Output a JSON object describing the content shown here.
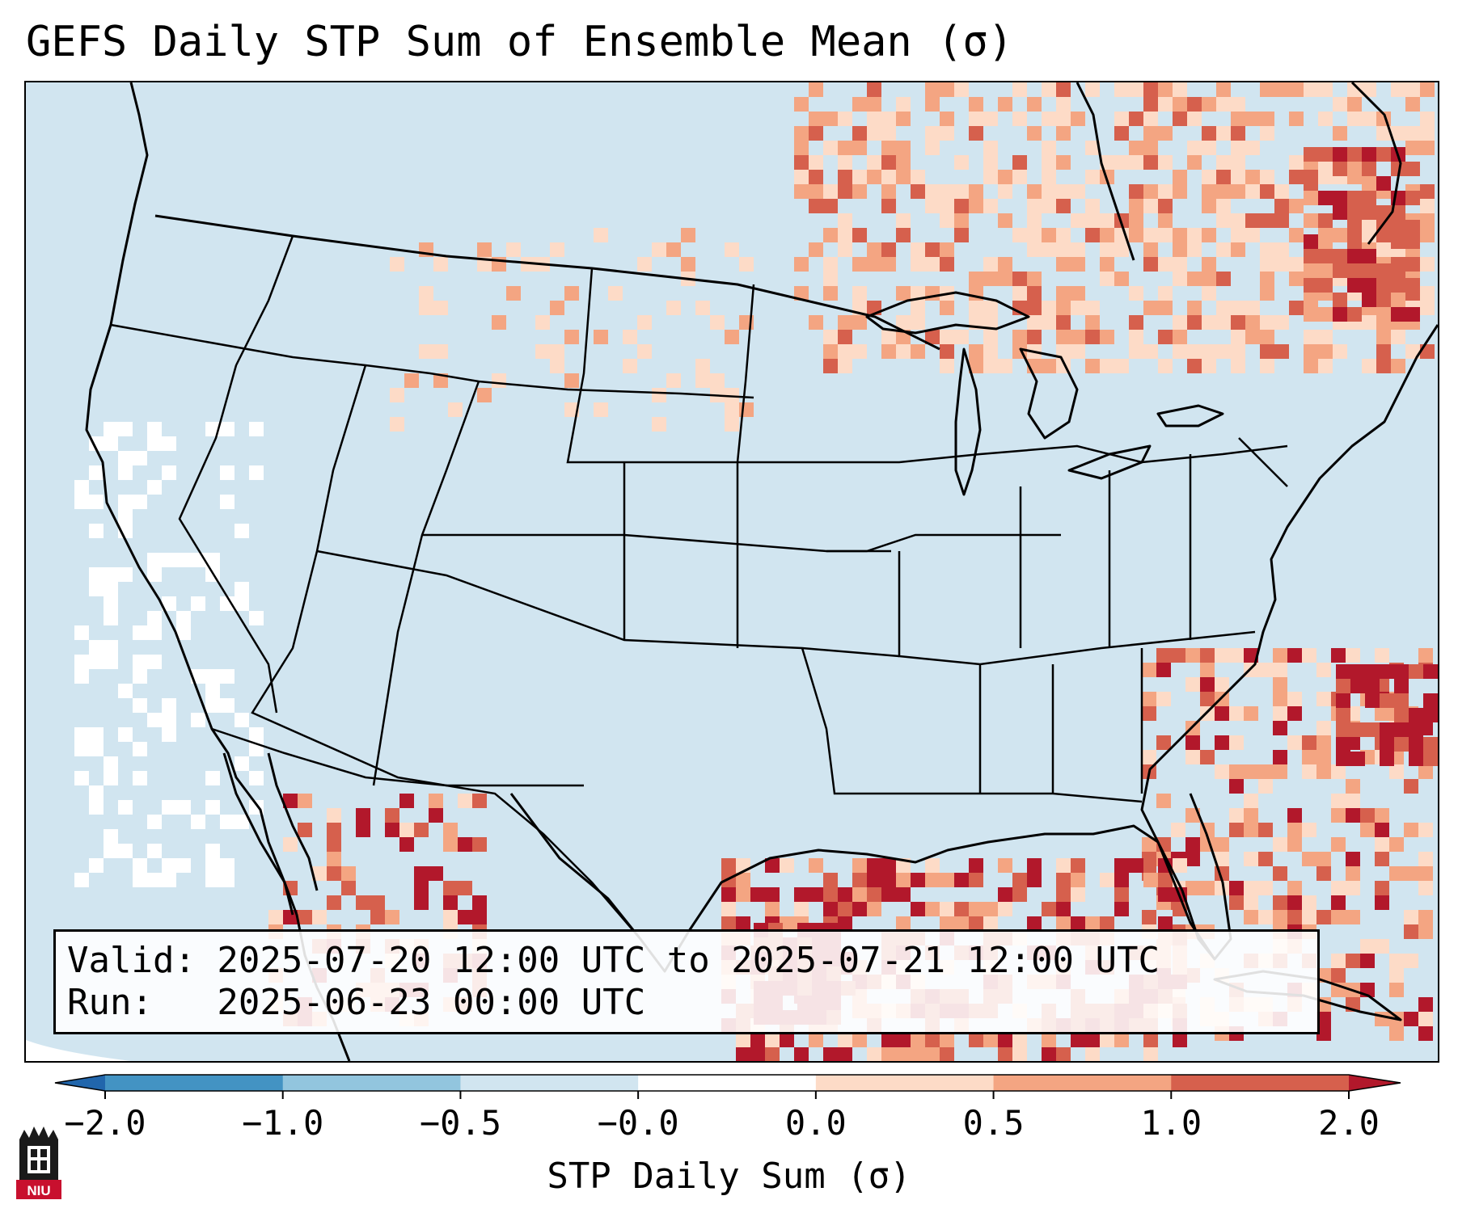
{
  "title": "GEFS Daily STP Sum of Ensemble Mean (σ)",
  "info": {
    "valid_line": "Valid: 2025-07-20 12:00 UTC to 2025-07-21 12:00 UTC",
    "run_line": "Run:   2025-06-23 00:00 UTC"
  },
  "colorbar": {
    "label": "STP Daily Sum (σ)",
    "ticks": [
      "−2.0",
      "−1.0",
      "−0.5",
      "−0.0",
      "0.0",
      "0.5",
      "1.0",
      "2.0"
    ],
    "bin_colors": [
      "#4393c3",
      "#92c5de",
      "#d1e5f0",
      "#ffffff",
      "#fddbc7",
      "#f4a582",
      "#d6604d"
    ],
    "under_color": "#2166ac",
    "over_color": "#b2182b"
  },
  "map": {
    "background_color": "#d1e5f0",
    "line_color": "#000000"
  },
  "logo": {
    "text": "NIU",
    "color": "#c8102e"
  }
}
